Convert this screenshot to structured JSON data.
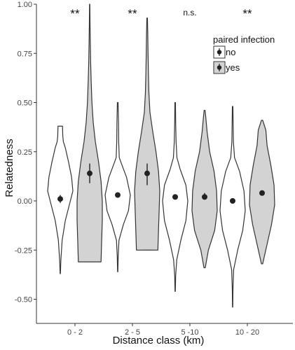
{
  "chart_data": {
    "type": "violin",
    "xlabel": "Distance class (km)",
    "ylabel": "Relatedness",
    "ylim": [
      -0.6,
      1.0
    ],
    "yticks": [
      "1.00",
      "0.75",
      "0.50",
      "0.25",
      "0.00",
      "-0.25",
      "-0.50"
    ],
    "ytick_values": [
      1.0,
      0.75,
      0.5,
      0.25,
      0.0,
      -0.25,
      -0.5
    ],
    "categories": [
      "0 - 2",
      "2 - 5",
      "5 -10",
      "10 - 20"
    ],
    "significance": [
      "**",
      "**",
      "n.s.",
      "**"
    ],
    "legend": {
      "title": "paired infection",
      "position": "top-right",
      "entries": [
        {
          "label": "no",
          "fill": "#ffffff"
        },
        {
          "label": "yes",
          "fill": "#d3d3d3"
        }
      ]
    },
    "colors": {
      "no": "#ffffff",
      "yes": "#d3d3d3",
      "outline": "#333333",
      "point": "#222222"
    },
    "series": [
      {
        "name": "no",
        "groups": [
          {
            "category": "0 - 2",
            "min": -0.37,
            "max": 0.38,
            "mean": 0.01,
            "ci": [
              -0.01,
              0.03
            ],
            "profile": [
              [
                -0.37,
                0.01
              ],
              [
                -0.3,
                0.05
              ],
              [
                -0.2,
                0.15
              ],
              [
                -0.1,
                0.4
              ],
              [
                0.0,
                0.8
              ],
              [
                0.05,
                1.0
              ],
              [
                0.12,
                0.9
              ],
              [
                0.2,
                0.65
              ],
              [
                0.27,
                0.4
              ],
              [
                0.3,
                0.25
              ],
              [
                0.33,
                0.2
              ],
              [
                0.38,
                0.18
              ]
            ]
          },
          {
            "category": "2 - 5",
            "min": -0.36,
            "max": 0.5,
            "mean": 0.03,
            "ci": [
              0.02,
              0.04
            ],
            "profile": [
              [
                -0.36,
                0.01
              ],
              [
                -0.28,
                0.04
              ],
              [
                -0.2,
                0.1
              ],
              [
                -0.12,
                0.45
              ],
              [
                -0.05,
                0.85
              ],
              [
                0.03,
                1.0
              ],
              [
                0.12,
                0.7
              ],
              [
                0.18,
                0.35
              ],
              [
                0.22,
                0.12
              ],
              [
                0.3,
                0.08
              ],
              [
                0.4,
                0.06
              ],
              [
                0.5,
                0.03
              ]
            ]
          },
          {
            "category": "5 -10",
            "min": -0.46,
            "max": 0.5,
            "mean": 0.02,
            "ci": [
              0.01,
              0.03
            ],
            "profile": [
              [
                -0.46,
                0.01
              ],
              [
                -0.38,
                0.04
              ],
              [
                -0.3,
                0.12
              ],
              [
                -0.2,
                0.45
              ],
              [
                -0.1,
                0.85
              ],
              [
                0.0,
                1.0
              ],
              [
                0.08,
                0.85
              ],
              [
                0.16,
                0.4
              ],
              [
                0.22,
                0.14
              ],
              [
                0.3,
                0.07
              ],
              [
                0.4,
                0.04
              ],
              [
                0.5,
                0.02
              ]
            ]
          },
          {
            "category": "10 - 20",
            "min": -0.54,
            "max": 0.48,
            "mean": 0.0,
            "ci": [
              -0.01,
              0.01
            ],
            "profile": [
              [
                -0.54,
                0.01
              ],
              [
                -0.45,
                0.03
              ],
              [
                -0.35,
                0.08
              ],
              [
                -0.25,
                0.4
              ],
              [
                -0.15,
                0.8
              ],
              [
                -0.05,
                1.0
              ],
              [
                0.05,
                0.9
              ],
              [
                0.15,
                0.55
              ],
              [
                0.22,
                0.15
              ],
              [
                0.3,
                0.06
              ],
              [
                0.4,
                0.04
              ],
              [
                0.48,
                0.02
              ]
            ]
          }
        ]
      },
      {
        "name": "yes",
        "groups": [
          {
            "category": "0 - 2",
            "min": -0.31,
            "max": 1.0,
            "mean": 0.14,
            "ci": [
              0.09,
              0.19
            ],
            "profile": [
              [
                -0.31,
                0.9
              ],
              [
                -0.2,
                0.95
              ],
              [
                -0.1,
                1.0
              ],
              [
                0.0,
                1.0
              ],
              [
                0.1,
                0.9
              ],
              [
                0.2,
                0.7
              ],
              [
                0.3,
                0.45
              ],
              [
                0.4,
                0.28
              ],
              [
                0.5,
                0.18
              ],
              [
                0.6,
                0.12
              ],
              [
                0.7,
                0.08
              ],
              [
                0.8,
                0.05
              ],
              [
                0.9,
                0.03
              ],
              [
                1.0,
                0.01
              ]
            ]
          },
          {
            "category": "2 - 5",
            "min": -0.25,
            "max": 0.93,
            "mean": 0.14,
            "ci": [
              0.08,
              0.19
            ],
            "profile": [
              [
                -0.25,
                0.85
              ],
              [
                -0.15,
                0.9
              ],
              [
                -0.05,
                0.95
              ],
              [
                0.05,
                1.0
              ],
              [
                0.15,
                0.9
              ],
              [
                0.25,
                0.7
              ],
              [
                0.35,
                0.45
              ],
              [
                0.45,
                0.22
              ],
              [
                0.55,
                0.14
              ],
              [
                0.65,
                0.1
              ],
              [
                0.75,
                0.07
              ],
              [
                0.85,
                0.05
              ],
              [
                0.93,
                0.02
              ]
            ]
          },
          {
            "category": "5 -10",
            "min": -0.34,
            "max": 0.46,
            "mean": 0.02,
            "ci": [
              0.01,
              0.04
            ],
            "profile": [
              [
                -0.34,
                0.05
              ],
              [
                -0.25,
                0.3
              ],
              [
                -0.15,
                0.8
              ],
              [
                -0.05,
                1.0
              ],
              [
                0.05,
                0.95
              ],
              [
                0.15,
                0.75
              ],
              [
                0.25,
                0.4
              ],
              [
                0.35,
                0.2
              ],
              [
                0.42,
                0.1
              ],
              [
                0.46,
                0.04
              ]
            ]
          },
          {
            "category": "10 - 20",
            "min": -0.32,
            "max": 0.41,
            "mean": 0.04,
            "ci": [
              0.03,
              0.05
            ],
            "profile": [
              [
                -0.32,
                0.05
              ],
              [
                -0.22,
                0.4
              ],
              [
                -0.12,
                0.75
              ],
              [
                -0.02,
                1.0
              ],
              [
                0.08,
                0.95
              ],
              [
                0.18,
                0.7
              ],
              [
                0.28,
                0.4
              ],
              [
                0.36,
                0.3
              ],
              [
                0.41,
                0.05
              ]
            ]
          }
        ]
      }
    ]
  }
}
